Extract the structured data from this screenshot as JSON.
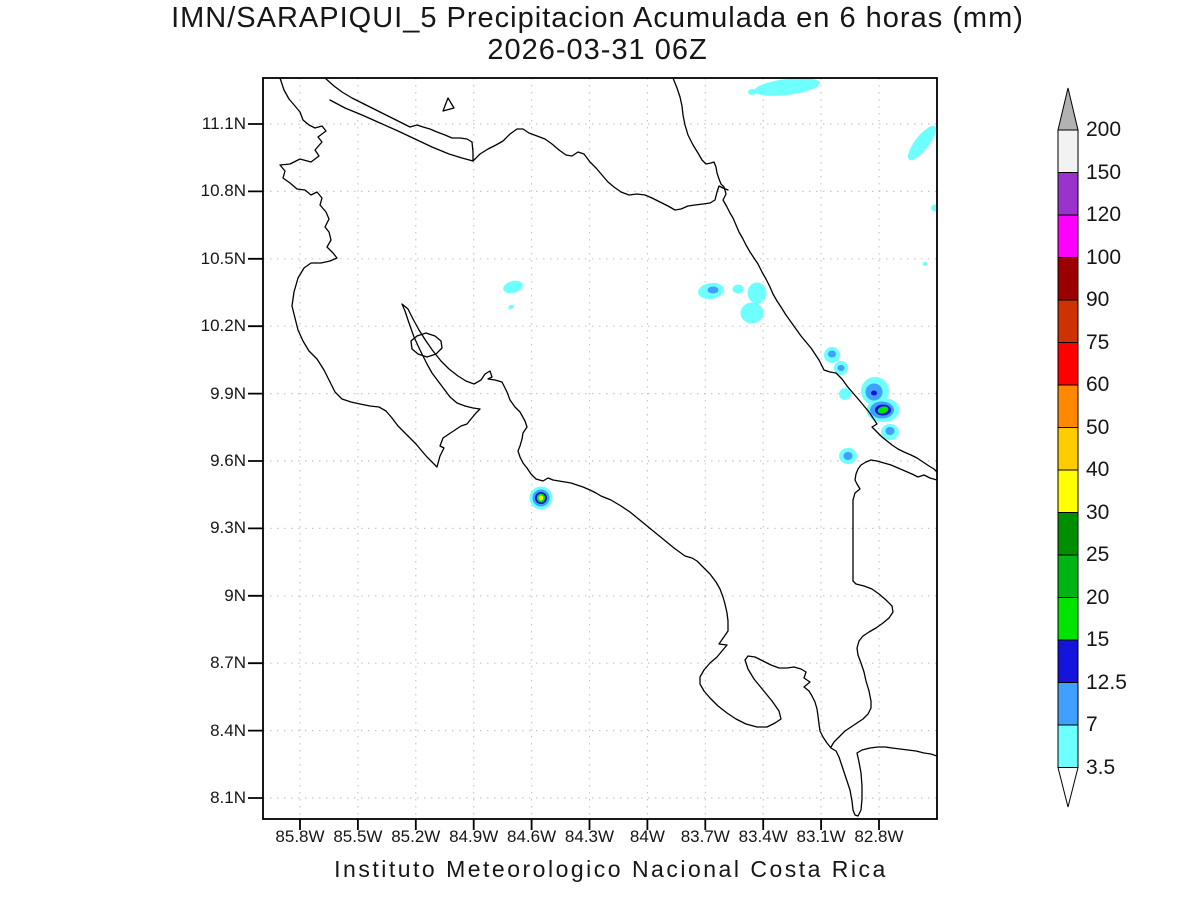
{
  "title": {
    "line1": "IMN/SARAPIQUI_5 Precipitacion Acumulada en 6 horas (mm)",
    "line2": "2026-03-31 06Z"
  },
  "footer": {
    "text": "Instituto Meteorologico Nacional Costa Rica"
  },
  "axes": {
    "x_ticks": [
      "85.8W",
      "85.5W",
      "85.2W",
      "84.9W",
      "84.6W",
      "84.3W",
      "84W",
      "83.7W",
      "83.4W",
      "83.1W",
      "82.8W"
    ],
    "y_ticks": [
      "11.1N",
      "10.8N",
      "10.5N",
      "10.2N",
      "9.9N",
      "9.6N",
      "9.3N",
      "9N",
      "8.7N",
      "8.4N",
      "8.1N"
    ]
  },
  "colorbar": {
    "labels": [
      "200",
      "150",
      "120",
      "100",
      "90",
      "75",
      "60",
      "50",
      "40",
      "30",
      "25",
      "20",
      "15",
      "12.5",
      "7",
      "3.5"
    ],
    "bands": [
      {
        "range": "150-200",
        "color": "#f2f2f2"
      },
      {
        "range": "120-150",
        "color": "#9933cc"
      },
      {
        "range": "100-120",
        "color": "#ff00ff"
      },
      {
        "range": "90-100",
        "color": "#9a0000"
      },
      {
        "range": "75-90",
        "color": "#cc3300"
      },
      {
        "range": "60-75",
        "color": "#ff0000"
      },
      {
        "range": "50-60",
        "color": "#ff8800"
      },
      {
        "range": "40-50",
        "color": "#ffcc00"
      },
      {
        "range": "30-40",
        "color": "#ffff00"
      },
      {
        "range": "25-30",
        "color": "#008f00"
      },
      {
        "range": "20-25",
        "color": "#00b414"
      },
      {
        "range": "15-20",
        "color": "#00e400"
      },
      {
        "range": "12.5-15",
        "color": "#1414dd"
      },
      {
        "range": "7-12.5",
        "color": "#41a0ff"
      },
      {
        "range": "3.5-7",
        "color": "#6effff"
      }
    ],
    "top_arrow_color": "#b2b2b2",
    "bottom_arrow_color": "#ffffff"
  },
  "map": {
    "coastline_color": "#000000",
    "grid_color": "#c8c8c8",
    "background": "#ffffff"
  },
  "chart_data": {
    "type": "heatmap",
    "title": "IMN/SARAPIQUI_5 Precipitacion Acumulada en 6 horas (mm)",
    "valid_time": "2026-03-31 06Z",
    "units": "mm",
    "region": "Costa Rica coastline map with lat/lon grid",
    "x_axis_ticks": [
      "85.8W",
      "85.5W",
      "85.2W",
      "84.9W",
      "84.6W",
      "84.3W",
      "84W",
      "83.7W",
      "83.4W",
      "83.1W",
      "82.8W"
    ],
    "y_axis_ticks": [
      "11.1N",
      "10.8N",
      "10.5N",
      "10.2N",
      "9.9N",
      "9.6N",
      "9.3N",
      "9N",
      "8.7N",
      "8.4N",
      "8.1N"
    ],
    "levels_mm": [
      3.5,
      7,
      12.5,
      15,
      20,
      25,
      30,
      40,
      50,
      60,
      75,
      90,
      100,
      120,
      150,
      200
    ],
    "level_colors_low_to_high": [
      "#6effff",
      "#41a0ff",
      "#1414dd",
      "#00e400",
      "#00b414",
      "#008f00",
      "#ffff00",
      "#ffcc00",
      "#ff8800",
      "#ff0000",
      "#cc3300",
      "#9a0000",
      "#ff00ff",
      "#9933cc",
      "#f2f2f2"
    ],
    "grid": "dotted, every 0.3 degrees",
    "legend_position": "right vertical colorbar with end arrows",
    "precipitation_cells": [
      {
        "lat": "11.28N",
        "lon": "83.27W",
        "max_band_mm": "3.5-7"
      },
      {
        "lat": "11.01N",
        "lon": "82.58W",
        "max_band_mm": "3.5-7"
      },
      {
        "lat": "10.72N",
        "lon": "82.52W",
        "max_band_mm": "3.5-7"
      },
      {
        "lat": "10.37N",
        "lon": "84.65W",
        "max_band_mm": "3.5-7"
      },
      {
        "lat": "10.35N",
        "lon": "83.63W",
        "max_band_mm": "7-12.5"
      },
      {
        "lat": "10.28N",
        "lon": "83.44W",
        "max_band_mm": "3.5-7"
      },
      {
        "lat": "10.06N",
        "lon": "83.04W",
        "max_band_mm": "7-12.5"
      },
      {
        "lat": "9.99N",
        "lon": "82.99W",
        "max_band_mm": "7-12.5"
      },
      {
        "lat": "9.88N",
        "lon": "82.83W",
        "max_band_mm": "12.5-15"
      },
      {
        "lat": "9.81N",
        "lon": "82.79W",
        "max_band_mm": "15-20"
      },
      {
        "lat": "9.71N",
        "lon": "82.74W",
        "max_band_mm": "7-12.5"
      },
      {
        "lat": "9.60N",
        "lon": "82.96W",
        "max_band_mm": "7-12.5"
      },
      {
        "lat": "9.42N",
        "lon": "84.51W",
        "max_band_mm": "30-40"
      }
    ]
  }
}
